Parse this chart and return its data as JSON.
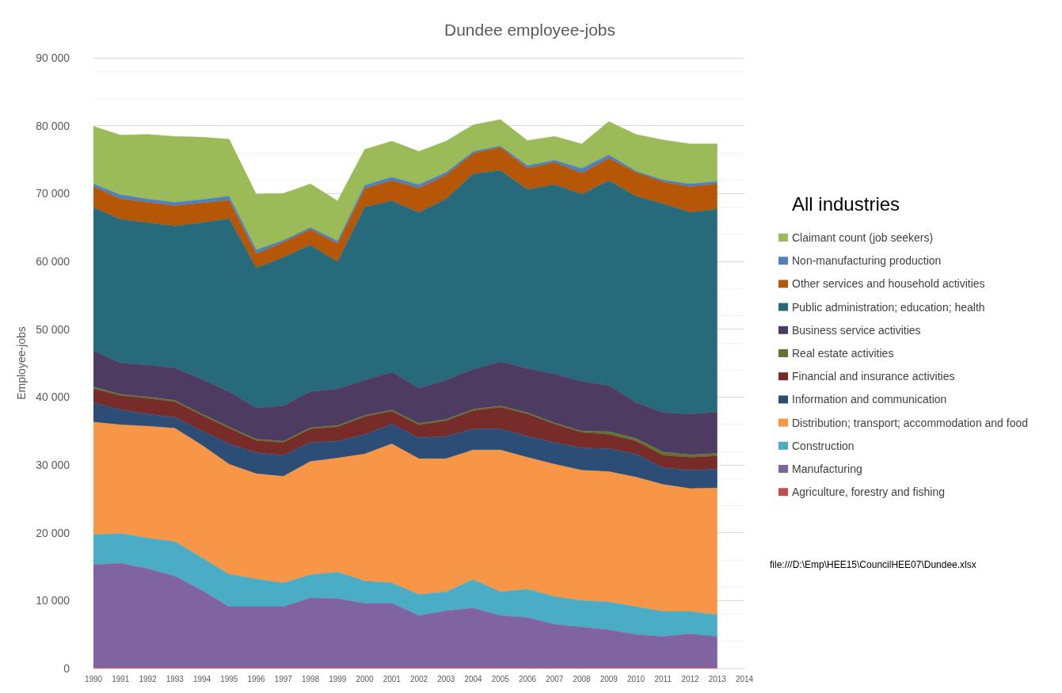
{
  "chart_data": {
    "type": "area",
    "stacked": true,
    "title": "Dundee employee-jobs",
    "ylabel": "Employee-jobs",
    "legend_title": "All industries",
    "legend": "right",
    "grid": "y",
    "categories": [
      "1990",
      "1991",
      "1992",
      "1993",
      "1994",
      "1995",
      "1996",
      "1997",
      "1998",
      "1999",
      "2000",
      "2001",
      "2002",
      "2003",
      "2004",
      "2005",
      "2006",
      "2007",
      "2008",
      "2009",
      "2010",
      "2011",
      "2012",
      "2013",
      "2014"
    ],
    "ylim": [
      0,
      90000
    ],
    "yticks": [
      0,
      {
        "value": 10000,
        "label": "10 000"
      },
      {
        "value": 20000,
        "label": "20 000"
      },
      {
        "value": 30000,
        "label": "30 000"
      },
      {
        "value": 40000,
        "label": "40 000"
      },
      {
        "value": 50000,
        "label": "50 000"
      },
      {
        "value": 60000,
        "label": "60 000"
      },
      {
        "value": 70000,
        "label": "70 000"
      },
      {
        "value": 80000,
        "label": "80 000"
      },
      {
        "value": 90000,
        "label": "90 000"
      }
    ],
    "series": [
      {
        "name": "Agriculture, forestry and fishing",
        "color": "#c0504d",
        "values": [
          100,
          100,
          100,
          100,
          100,
          100,
          100,
          100,
          100,
          100,
          100,
          100,
          100,
          100,
          100,
          100,
          100,
          100,
          100,
          100,
          100,
          100,
          100,
          100,
          null
        ]
      },
      {
        "name": "Manufacturing",
        "color": "#8064a2",
        "values": [
          15200,
          15400,
          14600,
          13500,
          11400,
          9000,
          9000,
          9000,
          10300,
          10200,
          9500,
          9500,
          7700,
          8400,
          8800,
          7700,
          7400,
          6400,
          6000,
          5600,
          4900,
          4600,
          5000,
          4600,
          null
        ]
      },
      {
        "name": "Construction",
        "color": "#4bacc6",
        "values": [
          4400,
          4400,
          4500,
          5100,
          4800,
          4800,
          4100,
          3500,
          3400,
          3900,
          3300,
          3000,
          3100,
          2800,
          4200,
          3500,
          4200,
          4100,
          3900,
          4100,
          4100,
          3700,
          3300,
          3200,
          null
        ]
      },
      {
        "name": "Distribution; transport; accommodation and food",
        "color": "#f79646",
        "values": [
          16600,
          16000,
          16500,
          16700,
          16600,
          16200,
          15500,
          15700,
          16700,
          16800,
          18700,
          20500,
          20000,
          19600,
          19100,
          20900,
          19400,
          19500,
          19200,
          19200,
          19100,
          18700,
          18100,
          18700,
          null
        ]
      },
      {
        "name": "Information and communication",
        "color": "#2c4d75",
        "values": [
          2900,
          2200,
          1800,
          1600,
          2100,
          3000,
          3100,
          3100,
          2800,
          2500,
          2900,
          2900,
          3100,
          3300,
          3100,
          3100,
          3100,
          3200,
          3300,
          3400,
          3400,
          2500,
          2700,
          2800,
          null
        ]
      },
      {
        "name": "Financial and insurance activities",
        "color": "#772c2a",
        "values": [
          2000,
          2100,
          2300,
          2300,
          2300,
          2300,
          1800,
          1900,
          2000,
          2100,
          2600,
          1900,
          1900,
          2300,
          2700,
          3200,
          3300,
          2700,
          2300,
          2100,
          1900,
          1800,
          1900,
          1900,
          null
        ]
      },
      {
        "name": "Real estate activities",
        "color": "#5f7530",
        "values": [
          300,
          200,
          200,
          200,
          200,
          200,
          200,
          200,
          200,
          200,
          200,
          200,
          200,
          200,
          200,
          200,
          200,
          200,
          200,
          400,
          400,
          500,
          400,
          400,
          null
        ]
      },
      {
        "name": "Business service activities",
        "color": "#4d3b62",
        "values": [
          5300,
          4600,
          4700,
          4800,
          5100,
          5200,
          4600,
          5200,
          5300,
          5400,
          5200,
          5600,
          5200,
          5800,
          5900,
          6500,
          6500,
          7200,
          7300,
          6800,
          5300,
          5800,
          6000,
          6100,
          null
        ]
      },
      {
        "name": "Public administration; education; health",
        "color": "#276a7c",
        "values": [
          21100,
          21200,
          21000,
          20900,
          23100,
          25500,
          20600,
          21900,
          21600,
          18700,
          25500,
          25200,
          25900,
          26700,
          28800,
          28200,
          26400,
          27900,
          27600,
          30200,
          30400,
          30800,
          29700,
          29900,
          null
        ]
      },
      {
        "name": "Other services and household activities",
        "color": "#b65708",
        "values": [
          3100,
          3000,
          3000,
          3000,
          2900,
          2700,
          2100,
          2200,
          2300,
          2700,
          2700,
          3000,
          3600,
          3500,
          3000,
          3400,
          3100,
          3300,
          3100,
          3300,
          3500,
          3200,
          3800,
          3700,
          null
        ]
      },
      {
        "name": "Non-manufacturing production",
        "color": "#4f81bd",
        "values": [
          400,
          600,
          500,
          500,
          500,
          600,
          600,
          300,
          300,
          400,
          500,
          500,
          500,
          400,
          300,
          200,
          400,
          300,
          700,
          500,
          200,
          300,
          400,
          400,
          null
        ]
      },
      {
        "name": "Claimant count (job seekers)",
        "color": "#9bbb59",
        "values": [
          8500,
          8800,
          9500,
          9700,
          9200,
          8400,
          8200,
          6900,
          6400,
          5900,
          5300,
          5300,
          4900,
          4600,
          3900,
          3900,
          3700,
          3500,
          3600,
          4900,
          5400,
          5900,
          5900,
          5500,
          null
        ]
      }
    ],
    "annotations": [
      "file:///D:\\Emp\\HEE15\\CouncilHEE07\\Dundee.xlsx"
    ]
  }
}
